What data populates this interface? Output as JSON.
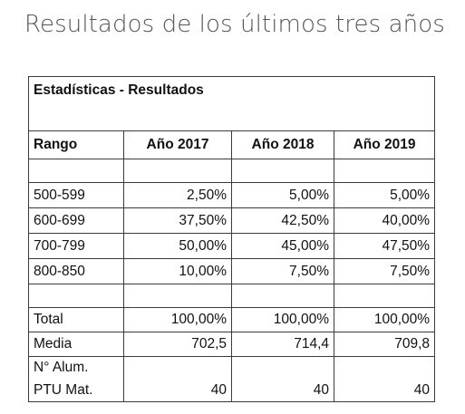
{
  "heading": "Resultados de los últimos tres años",
  "table": {
    "title": "Estadísticas - Resultados",
    "columns": [
      "Rango",
      "Año 2017",
      "Año 2018",
      "Año 2019"
    ],
    "rows": [
      {
        "label": "500-599",
        "values": [
          "2,50%",
          "5,00%",
          "5,00%"
        ]
      },
      {
        "label": "600-699",
        "values": [
          "37,50%",
          "42,50%",
          "40,00%"
        ]
      },
      {
        "label": "700-799",
        "values": [
          "50,00%",
          "45,00%",
          "47,50%"
        ]
      },
      {
        "label": "800-850",
        "values": [
          "10,00%",
          "7,50%",
          "7,50%"
        ]
      }
    ],
    "total": {
      "label": "Total",
      "values": [
        "100,00%",
        "100,00%",
        "100,00%"
      ]
    },
    "media": {
      "label": "Media",
      "values": [
        "702,5",
        "714,4",
        "709,8"
      ]
    },
    "alumnos": {
      "label_line1": "N° Alum.",
      "label_line2": "PTU Mat.",
      "values": [
        "40",
        "40",
        "40"
      ]
    }
  }
}
